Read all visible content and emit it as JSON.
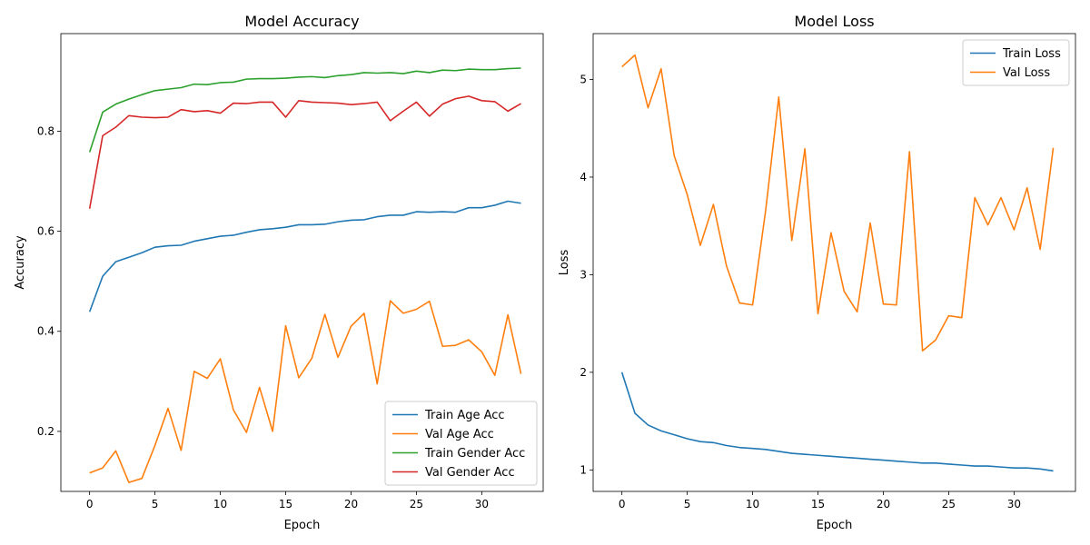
{
  "chart_data": [
    {
      "type": "line",
      "title": "Model Accuracy",
      "xlabel": "Epoch",
      "ylabel": "Accuracy",
      "xlim": [
        -2.2,
        34.7
      ],
      "ylim": [
        0.08,
        0.995
      ],
      "xticks": [
        0,
        5,
        10,
        15,
        20,
        25,
        30
      ],
      "yticks": [
        0.2,
        0.4,
        0.6,
        0.8
      ],
      "ytick_labels": [
        "0.2",
        "0.4",
        "0.6",
        "0.8"
      ],
      "legend": "lower-right",
      "grid": false,
      "x": [
        0,
        1,
        2,
        3,
        4,
        5,
        6,
        7,
        8,
        9,
        10,
        11,
        12,
        13,
        14,
        15,
        16,
        17,
        18,
        19,
        20,
        21,
        22,
        23,
        24,
        25,
        26,
        27,
        28,
        29,
        30,
        31,
        32,
        33
      ],
      "series": [
        {
          "name": "Train Age Acc",
          "color": "#1f77b4",
          "values": [
            0.439,
            0.51,
            0.539,
            0.548,
            0.557,
            0.568,
            0.571,
            0.572,
            0.58,
            0.585,
            0.59,
            0.592,
            0.598,
            0.603,
            0.605,
            0.608,
            0.613,
            0.613,
            0.614,
            0.619,
            0.622,
            0.623,
            0.629,
            0.632,
            0.632,
            0.639,
            0.638,
            0.639,
            0.638,
            0.647,
            0.647,
            0.652,
            0.66,
            0.656
          ]
        },
        {
          "name": "Val Age Acc",
          "color": "#ff7f0e",
          "values": [
            0.117,
            0.127,
            0.161,
            0.098,
            0.106,
            0.172,
            0.246,
            0.162,
            0.32,
            0.306,
            0.345,
            0.243,
            0.198,
            0.288,
            0.2,
            0.411,
            0.307,
            0.346,
            0.434,
            0.348,
            0.41,
            0.436,
            0.295,
            0.461,
            0.436,
            0.444,
            0.46,
            0.37,
            0.372,
            0.383,
            0.359,
            0.312,
            0.433,
            0.315
          ]
        },
        {
          "name": "Train Gender Acc",
          "color": "#2ca02c",
          "values": [
            0.758,
            0.838,
            0.854,
            0.864,
            0.873,
            0.881,
            0.884,
            0.887,
            0.894,
            0.893,
            0.897,
            0.898,
            0.904,
            0.905,
            0.905,
            0.906,
            0.908,
            0.909,
            0.907,
            0.911,
            0.913,
            0.917,
            0.916,
            0.917,
            0.915,
            0.92,
            0.917,
            0.922,
            0.921,
            0.924,
            0.923,
            0.923,
            0.925,
            0.926
          ]
        },
        {
          "name": "Val Gender Acc",
          "color": "#d62728",
          "values": [
            0.645,
            0.791,
            0.808,
            0.831,
            0.828,
            0.827,
            0.828,
            0.843,
            0.839,
            0.841,
            0.836,
            0.856,
            0.855,
            0.858,
            0.858,
            0.828,
            0.861,
            0.858,
            0.857,
            0.856,
            0.853,
            0.855,
            0.858,
            0.821,
            0.84,
            0.858,
            0.83,
            0.854,
            0.865,
            0.87,
            0.861,
            0.859,
            0.84,
            0.855
          ]
        }
      ]
    },
    {
      "type": "line",
      "title": "Model Loss",
      "xlabel": "Epoch",
      "ylabel": "Loss",
      "xlim": [
        -2.2,
        34.7
      ],
      "ylim": [
        0.78,
        5.47
      ],
      "xticks": [
        0,
        5,
        10,
        15,
        20,
        25,
        30
      ],
      "yticks": [
        1,
        2,
        3,
        4,
        5
      ],
      "ytick_labels": [
        "1",
        "2",
        "3",
        "4",
        "5"
      ],
      "legend": "top-right",
      "grid": false,
      "x": [
        0,
        1,
        2,
        3,
        4,
        5,
        6,
        7,
        8,
        9,
        10,
        11,
        12,
        13,
        14,
        15,
        16,
        17,
        18,
        19,
        20,
        21,
        22,
        23,
        24,
        25,
        26,
        27,
        28,
        29,
        30,
        31,
        32,
        33
      ],
      "series": [
        {
          "name": "Train Loss",
          "color": "#1f77b4",
          "values": [
            2.0,
            1.58,
            1.46,
            1.4,
            1.36,
            1.32,
            1.29,
            1.28,
            1.25,
            1.23,
            1.22,
            1.21,
            1.19,
            1.17,
            1.16,
            1.15,
            1.14,
            1.13,
            1.12,
            1.11,
            1.1,
            1.09,
            1.08,
            1.07,
            1.07,
            1.06,
            1.05,
            1.04,
            1.04,
            1.03,
            1.02,
            1.02,
            1.01,
            0.99
          ]
        },
        {
          "name": "Val Loss",
          "color": "#ff7f0e",
          "values": [
            5.13,
            5.25,
            4.71,
            5.11,
            4.22,
            3.82,
            3.3,
            3.72,
            3.09,
            2.71,
            2.69,
            3.66,
            4.82,
            3.35,
            4.29,
            2.6,
            3.43,
            2.83,
            2.62,
            3.53,
            2.7,
            2.69,
            4.26,
            2.22,
            2.33,
            2.58,
            2.56,
            3.79,
            3.51,
            3.79,
            3.46,
            3.89,
            3.26,
            4.3
          ]
        }
      ]
    }
  ]
}
